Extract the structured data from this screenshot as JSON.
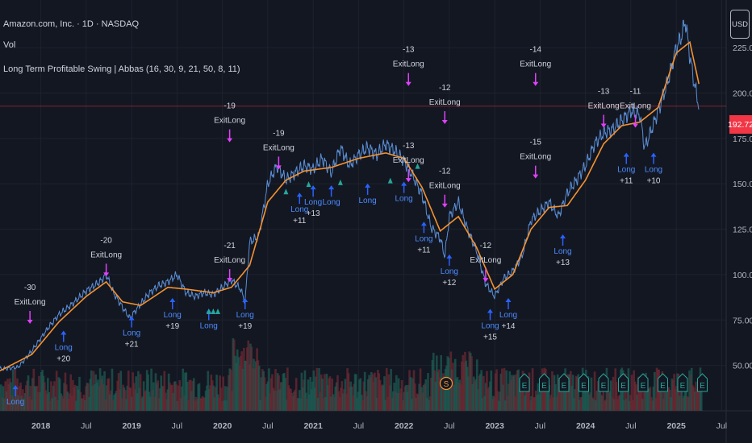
{
  "header": {
    "symbol_line": "Amazon.com, Inc. · 1D · NASDAQ",
    "volume_label": "Vol",
    "indicator_line": "Long Term Profitable Swing | Abbas (16, 30, 9, 21, 50, 8, 11)"
  },
  "currency_button": "USD",
  "current_price": "192.72",
  "colors": {
    "background": "#131722",
    "price_line": "#f23645",
    "ema": "#f5922f",
    "long_signal": "#2962ff",
    "exit_signal": "#e040fb",
    "triangle": "#26a69a"
  },
  "chart_data": {
    "type": "line",
    "y_axis": {
      "ticks": [
        50,
        75,
        100,
        125,
        150,
        175,
        200,
        225
      ],
      "tick_labels": [
        "50.00",
        "75.00",
        "100.00",
        "125.00",
        "150.00",
        "175.00",
        "200.00",
        "225.00"
      ],
      "ylim": [
        25,
        245
      ]
    },
    "x_axis": {
      "tick_labels": [
        "2018",
        "Jul",
        "2019",
        "Jul",
        "2020",
        "Jul",
        "2021",
        "Jul",
        "2022",
        "Jul",
        "2023",
        "Jul",
        "2024",
        "Jul",
        "2025",
        "Jul"
      ],
      "tick_t": [
        2018.0,
        2018.5,
        2019.0,
        2019.5,
        2020.0,
        2020.5,
        2021.0,
        2021.5,
        2022.0,
        2022.5,
        2023.0,
        2023.5,
        2024.0,
        2024.5,
        2025.0,
        2025.5
      ],
      "xlim": [
        2017.55,
        2025.55
      ]
    },
    "price_series": {
      "t": [
        2017.55,
        2017.75,
        2017.9,
        2018.0,
        2018.1,
        2018.2,
        2018.35,
        2018.5,
        2018.65,
        2018.72,
        2018.8,
        2018.9,
        2018.98,
        2019.1,
        2019.2,
        2019.3,
        2019.4,
        2019.5,
        2019.6,
        2019.7,
        2019.8,
        2019.9,
        2020.0,
        2020.1,
        2020.2,
        2020.25,
        2020.3,
        2020.4,
        2020.5,
        2020.6,
        2020.7,
        2020.8,
        2020.9,
        2021.0,
        2021.1,
        2021.2,
        2021.3,
        2021.4,
        2021.5,
        2021.6,
        2021.7,
        2021.8,
        2021.9,
        2022.0,
        2022.1,
        2022.2,
        2022.3,
        2022.4,
        2022.45,
        2022.5,
        2022.6,
        2022.7,
        2022.8,
        2022.85,
        2022.9,
        2023.0,
        2023.1,
        2023.2,
        2023.3,
        2023.4,
        2023.5,
        2023.6,
        2023.7,
        2023.8,
        2023.9,
        2024.0,
        2024.1,
        2024.2,
        2024.3,
        2024.4,
        2024.5,
        2024.6,
        2024.65,
        2024.7,
        2024.8,
        2024.9,
        2025.0,
        2025.05,
        2025.1,
        2025.15,
        2025.2,
        2025.25
      ],
      "close": [
        48,
        49,
        58,
        65,
        72,
        78,
        84,
        91,
        96,
        100,
        90,
        82,
        76,
        84,
        90,
        94,
        96,
        100,
        90,
        88,
        90,
        89,
        93,
        97,
        92,
        85,
        118,
        121,
        150,
        160,
        152,
        156,
        160,
        158,
        164,
        156,
        170,
        160,
        166,
        170,
        166,
        172,
        168,
        163,
        154,
        144,
        126,
        120,
        110,
        132,
        140,
        125,
        113,
        104,
        95,
        88,
        98,
        102,
        110,
        130,
        135,
        140,
        132,
        145,
        152,
        160,
        172,
        178,
        180,
        185,
        190,
        188,
        170,
        176,
        190,
        205,
        225,
        230,
        240,
        220,
        205,
        192.72
      ]
    },
    "ema_series": {
      "t": [
        2017.55,
        2017.9,
        2018.2,
        2018.5,
        2018.72,
        2018.9,
        2019.1,
        2019.4,
        2019.6,
        2019.9,
        2020.1,
        2020.3,
        2020.5,
        2020.7,
        2020.9,
        2021.2,
        2021.5,
        2021.8,
        2022.0,
        2022.2,
        2022.4,
        2022.6,
        2022.8,
        2023.0,
        2023.2,
        2023.4,
        2023.6,
        2023.8,
        2024.0,
        2024.2,
        2024.4,
        2024.6,
        2024.8,
        2025.0,
        2025.15,
        2025.25
      ],
      "value": [
        47,
        56,
        74,
        88,
        96,
        85,
        83,
        93,
        92,
        90,
        93,
        105,
        140,
        152,
        157,
        159,
        164,
        167,
        164,
        148,
        124,
        132,
        115,
        92,
        100,
        125,
        137,
        138,
        152,
        172,
        182,
        184,
        192,
        222,
        228,
        205
      ]
    },
    "exit_signals": [
      {
        "t": 2017.88,
        "price": 72,
        "label": "-30",
        "text": "ExitLong"
      },
      {
        "t": 2018.72,
        "price": 98,
        "label": "-20",
        "text": "ExitLong"
      },
      {
        "t": 2020.08,
        "price": 95,
        "label": "-21",
        "text": "ExitLong"
      },
      {
        "t": 2020.08,
        "price": 172,
        "label": "-19",
        "text": "ExitLong"
      },
      {
        "t": 2020.62,
        "price": 157,
        "label": "-19",
        "text": "ExitLong"
      },
      {
        "t": 2022.05,
        "price": 203,
        "label": "-13",
        "text": "ExitLong"
      },
      {
        "t": 2022.05,
        "price": 150,
        "label": "-13",
        "text": "ExitLong"
      },
      {
        "t": 2022.45,
        "price": 182,
        "label": "-12",
        "text": "ExitLong"
      },
      {
        "t": 2022.45,
        "price": 136,
        "label": "-12",
        "text": "ExitLong"
      },
      {
        "t": 2022.9,
        "price": 95,
        "label": "-12",
        "text": "ExitLong"
      },
      {
        "t": 2023.45,
        "price": 203,
        "label": "-14",
        "text": "ExitLong"
      },
      {
        "t": 2023.45,
        "price": 152,
        "label": "-15",
        "text": "ExitLong"
      },
      {
        "t": 2024.2,
        "price": 180,
        "label": "-13",
        "text": "ExitLong"
      },
      {
        "t": 2024.55,
        "price": 180,
        "label": "-11",
        "text": "ExitLong"
      }
    ],
    "long_signals": [
      {
        "t": 2017.72,
        "price": 40,
        "label": "",
        "text": "Long"
      },
      {
        "t": 2018.25,
        "price": 70,
        "label": "+20",
        "text": "Long"
      },
      {
        "t": 2019.0,
        "price": 78,
        "label": "+21",
        "text": "Long"
      },
      {
        "t": 2019.45,
        "price": 88,
        "label": "+19",
        "text": "Long"
      },
      {
        "t": 2019.85,
        "price": 82,
        "label": "",
        "text": "Long"
      },
      {
        "t": 2020.25,
        "price": 88,
        "label": "+19",
        "text": "Long"
      },
      {
        "t": 2020.85,
        "price": 146,
        "label": "+11",
        "text": "Long"
      },
      {
        "t": 2021.0,
        "price": 150,
        "label": "+13",
        "text": "Long"
      },
      {
        "t": 2021.2,
        "price": 150,
        "label": "",
        "text": "Long"
      },
      {
        "t": 2021.6,
        "price": 151,
        "label": "",
        "text": "Long"
      },
      {
        "t": 2022.0,
        "price": 152,
        "label": "",
        "text": "Long"
      },
      {
        "t": 2022.22,
        "price": 130,
        "label": "+11",
        "text": "Long"
      },
      {
        "t": 2022.5,
        "price": 112,
        "label": "+12",
        "text": "Long"
      },
      {
        "t": 2022.95,
        "price": 82,
        "label": "+15",
        "text": "Long"
      },
      {
        "t": 2023.15,
        "price": 88,
        "label": "+14",
        "text": "Long"
      },
      {
        "t": 2023.75,
        "price": 123,
        "label": "+13",
        "text": "Long"
      },
      {
        "t": 2024.45,
        "price": 168,
        "label": "+11",
        "text": "Long"
      },
      {
        "t": 2024.75,
        "price": 168,
        "label": "+10",
        "text": "Long"
      }
    ],
    "earnings_markers": [
      "E",
      "E",
      "E",
      "E",
      "E",
      "E",
      "E",
      "E",
      "E",
      "E"
    ],
    "dividend_marker": "S"
  }
}
